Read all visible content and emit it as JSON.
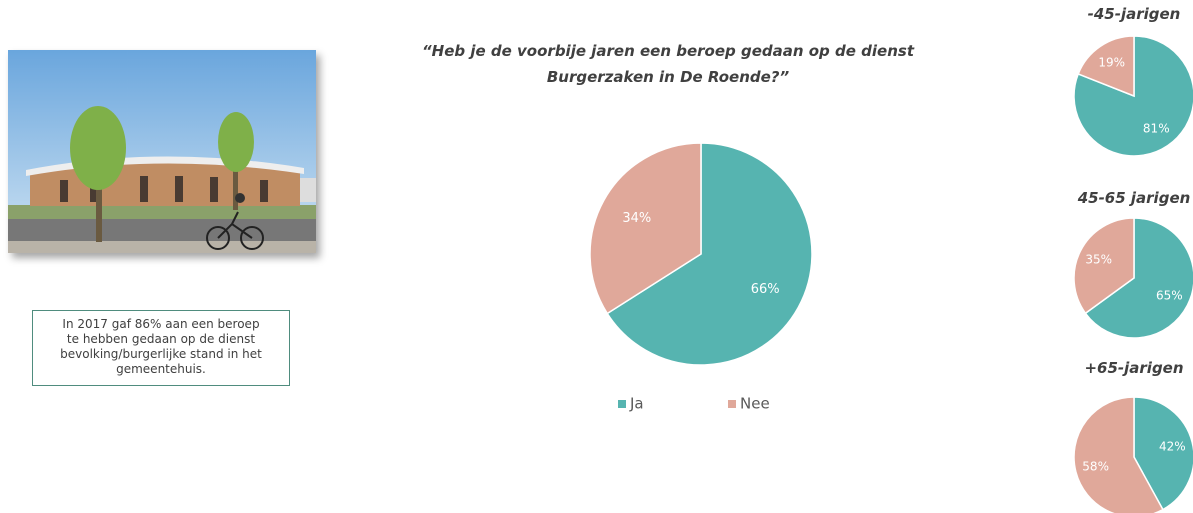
{
  "note": "In 2017 gaf 86% aan een beroep te hebben gedaan op de dienst bevolking/burgerlijke stand in het gemeentehuis.",
  "chart_data": [
    {
      "type": "pie",
      "title": "“Heb je de voorbije jaren een beroep gedaan op de dienst Burgerzaken in De Roende?”",
      "categories": [
        "Ja",
        "Nee"
      ],
      "values": [
        66,
        34
      ],
      "value_labels": [
        "66%",
        "34%"
      ],
      "colors": [
        "#56b4b0",
        "#e0a89a"
      ],
      "legend": "bottom"
    },
    {
      "type": "pie",
      "title": "-45-jarigen",
      "values": [
        81,
        19
      ],
      "value_labels": [
        "81%",
        "19%"
      ],
      "colors": [
        "#56b4b0",
        "#e0a89a"
      ]
    },
    {
      "type": "pie",
      "title": "45-65 jarigen",
      "values": [
        65,
        35
      ],
      "value_labels": [
        "65%",
        "35%"
      ],
      "colors": [
        "#56b4b0",
        "#e0a89a"
      ]
    },
    {
      "type": "pie",
      "title": "+65-jarigen",
      "values": [
        42,
        58
      ],
      "value_labels": [
        "42%",
        "58%"
      ],
      "colors": [
        "#56b4b0",
        "#e0a89a"
      ]
    }
  ]
}
